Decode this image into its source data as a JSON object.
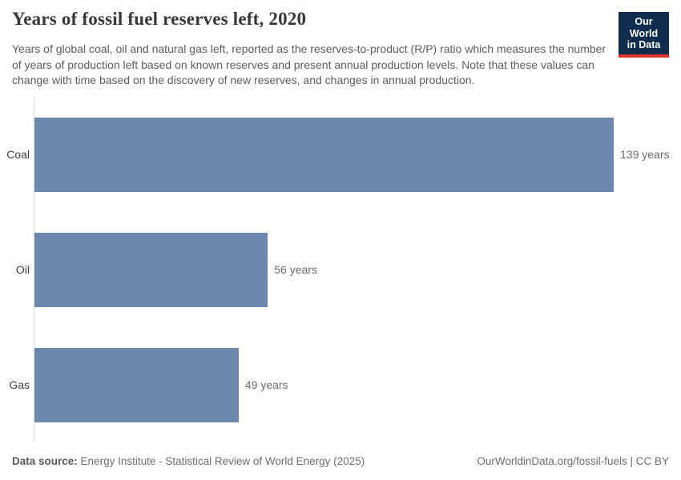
{
  "header": {
    "title": "Years of fossil fuel reserves left, 2020",
    "subtitle": "Years of global coal, oil and natural gas left, reported as the reserves-to-product (R/P) ratio which measures the number of years of production left based on known reserves and present annual production levels. Note that these values can change with time based on the discovery of new reserves, and changes in annual production.",
    "logo": {
      "line1": "Our World",
      "line2": "in Data",
      "background_color": "#102d4e",
      "accent_color": "#dc352b"
    }
  },
  "chart_data": {
    "type": "bar",
    "orientation": "horizontal",
    "title": "Years of fossil fuel reserves left, 2020",
    "categories": [
      "Coal",
      "Oil",
      "Gas"
    ],
    "values": [
      139,
      56,
      49
    ],
    "value_labels": [
      "139 years",
      "56 years",
      "49 years"
    ],
    "unit": "years",
    "xlim": [
      0,
      139
    ],
    "grid": false,
    "legend": "none",
    "bar_color": "#6e87ad"
  },
  "footer": {
    "source_label": "Data source:",
    "source_text": "Energy Institute - Statistical Review of World Energy (2025)",
    "right_text": "OurWorldinData.org/fossil-fuels | CC BY"
  }
}
